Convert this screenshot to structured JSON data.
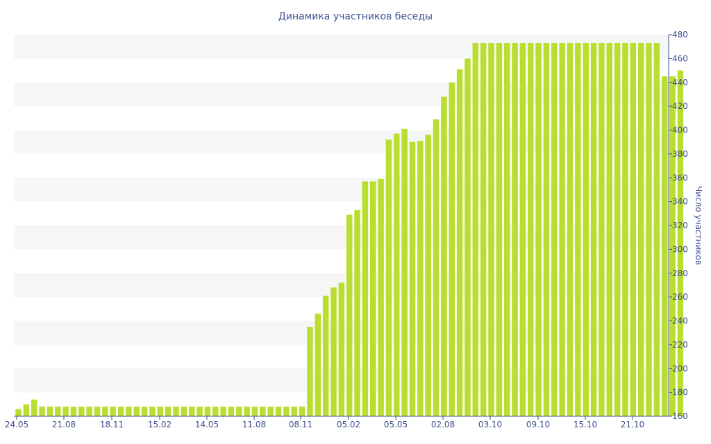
{
  "colors": {
    "bar": "#bade2f",
    "band": "#f6f6f6",
    "axis": "#3f4f8f",
    "text": "#3f4f8f"
  },
  "chart_data": {
    "type": "bar",
    "title": "Динамика участников беседы",
    "xlabel": "",
    "ylabel": "Число участников",
    "y_axis_position": "right",
    "grid": "alternating horizontal bands",
    "legend": "none",
    "ylim": [
      160,
      480
    ],
    "y_ticks": [
      160,
      180,
      200,
      220,
      240,
      260,
      280,
      300,
      320,
      340,
      360,
      380,
      400,
      420,
      440,
      460,
      480
    ],
    "x_tick_labels": [
      "24.05",
      "21.08",
      "18.11",
      "15.02",
      "14.05",
      "11.08",
      "08.11",
      "05.02",
      "05.05",
      "02.08",
      "03.10",
      "09.10",
      "15.10",
      "21.10"
    ],
    "values": [
      166,
      170,
      174,
      168,
      168,
      168,
      168,
      168,
      168,
      168,
      168,
      168,
      168,
      168,
      168,
      168,
      168,
      168,
      168,
      168,
      168,
      168,
      168,
      168,
      168,
      168,
      168,
      168,
      168,
      168,
      168,
      168,
      168,
      168,
      168,
      168,
      168,
      235,
      246,
      261,
      268,
      272,
      329,
      333,
      357,
      357,
      359,
      392,
      397,
      401,
      390,
      391,
      396,
      409,
      428,
      440,
      451,
      460,
      473,
      473,
      473,
      473,
      473,
      473,
      473,
      473,
      473,
      473,
      473,
      473,
      473,
      473,
      473,
      473,
      473,
      473,
      473,
      473,
      473,
      473,
      473,
      473,
      445,
      445,
      450
    ]
  }
}
